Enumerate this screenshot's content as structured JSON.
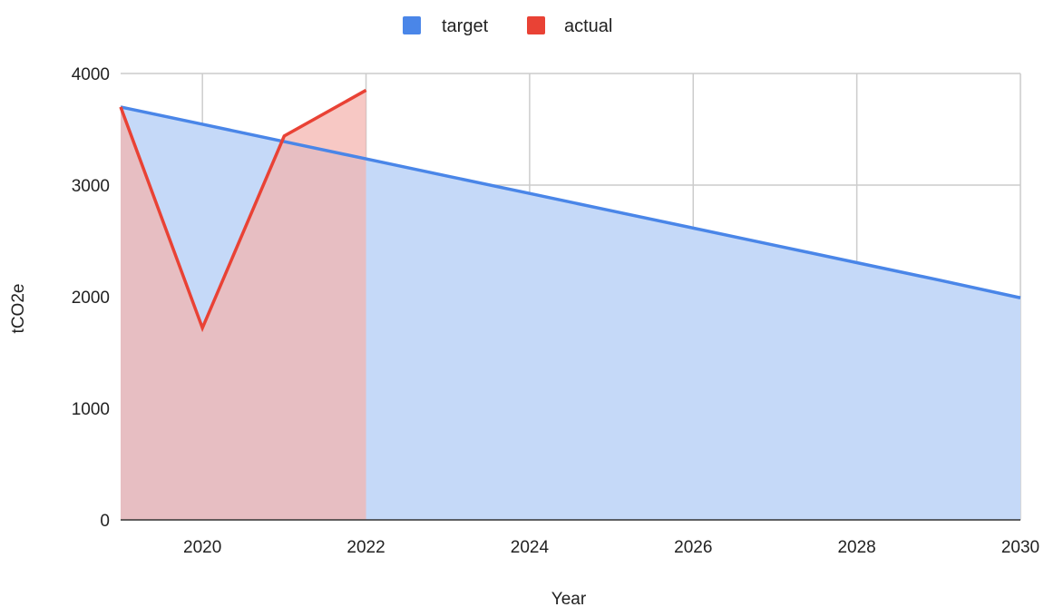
{
  "chart_data": {
    "type": "area",
    "title": "",
    "xlabel": "Year",
    "ylabel": "tCO2e",
    "xlim": [
      2019,
      2030
    ],
    "ylim": [
      0,
      4000
    ],
    "x_ticks": [
      2020,
      2022,
      2024,
      2026,
      2028,
      2030
    ],
    "y_ticks": [
      0,
      1000,
      2000,
      3000,
      4000
    ],
    "x_tick_labels": [
      "2020",
      "2022",
      "2024",
      "2026",
      "2028",
      "2030"
    ],
    "y_tick_labels": [
      "0",
      "1000",
      "2000",
      "3000",
      "4000"
    ],
    "grid": true,
    "legend_position": "top-center",
    "series": [
      {
        "name": "target",
        "color": "#4a86e8",
        "fill": "#c5d9f8",
        "x": [
          2019,
          2020,
          2021,
          2022,
          2023,
          2024,
          2025,
          2026,
          2027,
          2028,
          2029,
          2030
        ],
        "values": [
          3700,
          3545,
          3390,
          3235,
          3080,
          2925,
          2770,
          2615,
          2460,
          2305,
          2150,
          1990
        ]
      },
      {
        "name": "actual",
        "color": "#e94235",
        "fill": "#f4b3ad",
        "x": [
          2019,
          2020,
          2021,
          2022
        ],
        "values": [
          3700,
          1720,
          3440,
          3850
        ]
      }
    ]
  }
}
